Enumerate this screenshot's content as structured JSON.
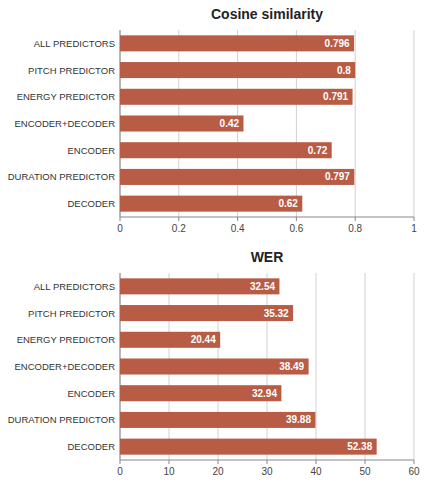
{
  "chart_data": [
    {
      "type": "bar",
      "orientation": "horizontal",
      "title": "Cosine similarity",
      "categories": [
        "ALL PREDICTORS",
        "PITCH PREDICTOR",
        "ENERGY PREDICTOR",
        "ENCODER+DECODER",
        "ENCODER",
        "DURATION PREDICTOR",
        "DECODER"
      ],
      "values": [
        0.796,
        0.8,
        0.791,
        0.42,
        0.72,
        0.797,
        0.62
      ],
      "color": "#b85c45",
      "xlim": [
        0,
        1
      ],
      "xticks": [
        0,
        0.2,
        0.4,
        0.6,
        0.8,
        1
      ],
      "grid": true,
      "data_labels": true
    },
    {
      "type": "bar",
      "orientation": "horizontal",
      "title": "WER",
      "categories": [
        "ALL PREDICTORS",
        "PITCH PREDICTOR",
        "ENERGY PREDICTOR",
        "ENCODER+DECODER",
        "ENCODER",
        "DURATION PREDICTOR",
        "DECODER"
      ],
      "values": [
        32.54,
        35.32,
        20.44,
        38.49,
        32.94,
        39.88,
        52.38
      ],
      "color": "#b85c45",
      "xlim": [
        0,
        60
      ],
      "xticks": [
        0,
        10,
        20,
        30,
        40,
        50,
        60
      ],
      "grid": true,
      "data_labels": true
    }
  ]
}
